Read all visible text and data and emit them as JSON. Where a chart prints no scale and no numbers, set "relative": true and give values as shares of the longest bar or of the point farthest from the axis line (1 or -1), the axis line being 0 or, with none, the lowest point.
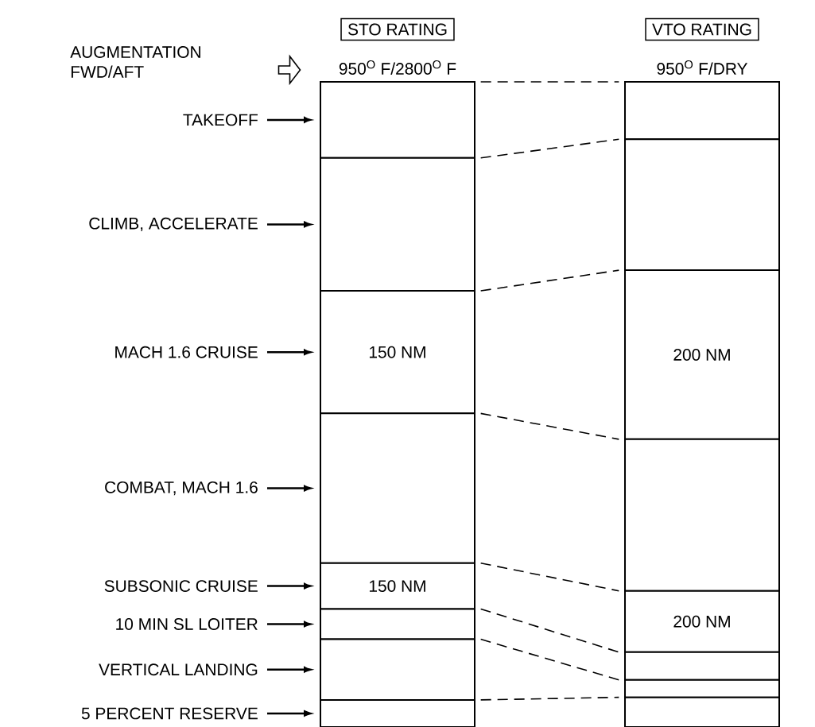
{
  "chart_data": {
    "type": "bar",
    "stacked": true,
    "relative": true,
    "legend": "left",
    "categories": [
      "STO RATING",
      "VTO RATING"
    ],
    "annotations": [
      "AUGMENTATION FWD/AFT",
      "950$^{O}$ F/2800$^{O}$ F",
      "950$^{O}$ F/DRY",
      "150 NM",
      "200 NM",
      "150 NM",
      "200 NM"
    ],
    "series": [
      {
        "name": "5 PERCENT RESERVE",
        "color": "#ffffff",
        "values": [
          0.042,
          0.046
        ]
      },
      {
        "name": "VERTICAL LANDING",
        "color": "#ffffff",
        "values": [
          0.094,
          0.027
        ]
      },
      {
        "name": "10 MIN SL LOITER",
        "color": "#ffffff",
        "values": [
          0.047,
          0.043
        ]
      },
      {
        "name": "SUBSONIC CRUISE",
        "color": "#ffffff",
        "values": [
          0.071,
          0.095
        ]
      },
      {
        "name": "COMBAT, MACH 1.6",
        "color": "#ffffff",
        "values": [
          0.232,
          0.235
        ]
      },
      {
        "name": "MACH 1.6 CRUISE",
        "color": "#ffffff",
        "values": [
          0.19,
          0.262
        ]
      },
      {
        "name": "CLIMB, ACCELERATE",
        "color": "#ffffff",
        "values": [
          0.206,
          0.203
        ]
      },
      {
        "name": "TAKEOFF",
        "color": "#ffffff",
        "values": [
          0.118,
          0.089
        ]
      }
    ]
  }
}
